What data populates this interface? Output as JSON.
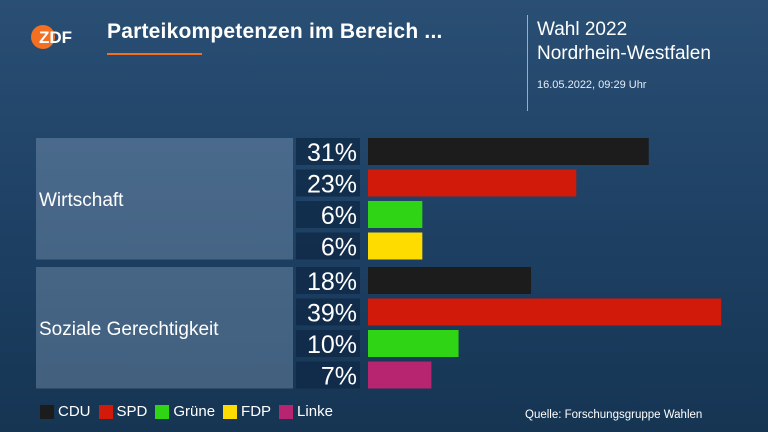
{
  "header": {
    "logo_text": "ZDF",
    "title": "Parteikompetenzen im Bereich ...",
    "election_line1": "Wahl 2022",
    "election_line2": "Nordrhein-Westfalen",
    "timestamp": "16.05.2022, 09:29 Uhr"
  },
  "colors": {
    "accent": "#f36f21",
    "CDU": "#1c1c1c",
    "SPD": "#d21a0a",
    "Grüne": "#2fd414",
    "FDP": "#ffdc00",
    "Linke": "#b7246f"
  },
  "chart_data": {
    "type": "bar",
    "orientation": "horizontal",
    "xlim": [
      0,
      40
    ],
    "unit": "%",
    "groups": [
      {
        "label": "Wirtschaft",
        "bars": [
          {
            "party": "CDU",
            "value": 31,
            "label": "31%"
          },
          {
            "party": "SPD",
            "value": 23,
            "label": "23%"
          },
          {
            "party": "Grüne",
            "value": 6,
            "label": "6%"
          },
          {
            "party": "FDP",
            "value": 6,
            "label": "6%"
          }
        ]
      },
      {
        "label": "Soziale Gerechtigkeit",
        "bars": [
          {
            "party": "CDU",
            "value": 18,
            "label": "18%"
          },
          {
            "party": "SPD",
            "value": 39,
            "label": "39%"
          },
          {
            "party": "Grüne",
            "value": 10,
            "label": "10%"
          },
          {
            "party": "Linke",
            "value": 7,
            "label": "7%"
          }
        ]
      }
    ],
    "legend": [
      "CDU",
      "SPD",
      "Grüne",
      "FDP",
      "Linke"
    ],
    "legend_position": "bottom-left"
  },
  "footer": {
    "source": "Quelle: Forschungsgruppe Wahlen"
  }
}
